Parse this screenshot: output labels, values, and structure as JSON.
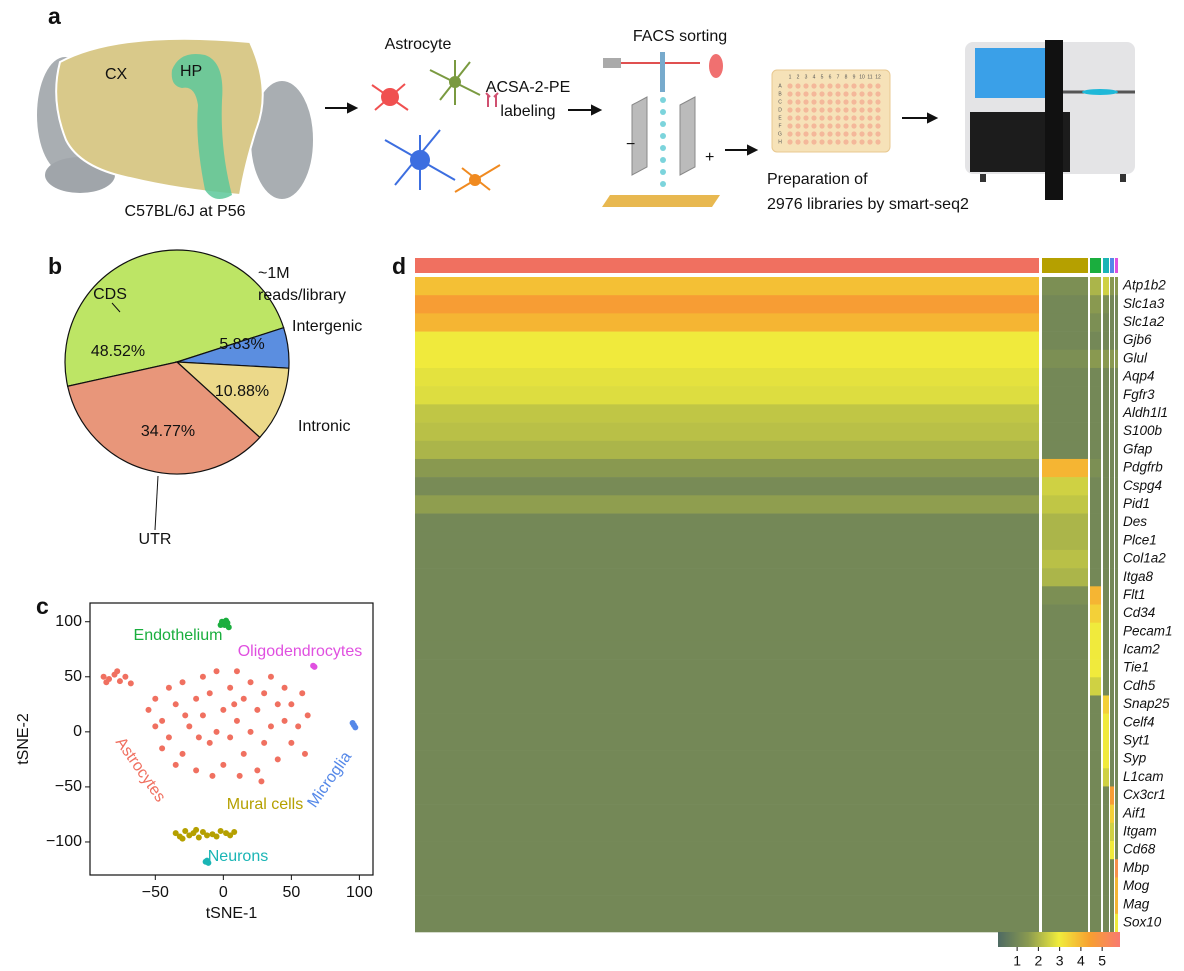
{
  "panel_labels": [
    "a",
    "b",
    "c",
    "d"
  ],
  "diagram": {
    "brain_labels": [
      "CX",
      "HP"
    ],
    "strain": "C57BL/6J at P56",
    "cell_label": "Astrocyte",
    "labeling": [
      "ACSA-2-PE",
      "labeling"
    ],
    "facs": "FACS sorting",
    "minus": "−",
    "plus": "+",
    "plate_cols": [
      "1",
      "2",
      "3",
      "4",
      "5",
      "6",
      "7",
      "8",
      "9",
      "10",
      "11",
      "12"
    ],
    "plate_rows": [
      "A",
      "B",
      "C",
      "D",
      "E",
      "F",
      "G",
      "H"
    ],
    "prep": [
      "Preparation of",
      "2976 libraries by smart-seq2"
    ]
  },
  "chart_data": [
    {
      "type": "pie",
      "annotation": [
        "~1M",
        "reads/library"
      ],
      "categories": [
        "CDS",
        "Intergenic",
        "Intronic",
        "UTR"
      ],
      "values": [
        48.52,
        5.83,
        10.88,
        34.77
      ],
      "value_labels": [
        "48.52%",
        "5.83%",
        "10.88%",
        "34.77%"
      ],
      "colors": [
        "#bde565",
        "#5b8ee0",
        "#ecd98a",
        "#e8967a"
      ]
    },
    {
      "type": "scatter",
      "xlabel": "tSNE-1",
      "ylabel": "tSNE-2",
      "xlim": [
        -98,
        110
      ],
      "ylim": [
        -130,
        117
      ],
      "xticks": [
        {
          "value": -50,
          "label": "−50"
        },
        0,
        50,
        100
      ],
      "yticks": [
        100,
        50,
        0,
        {
          "value": -50,
          "label": "−50"
        },
        {
          "value": -100,
          "label": "−100"
        }
      ],
      "series": [
        {
          "name": "Astrocytes",
          "color": "#f07060",
          "x": [
            -88,
            -84,
            -80,
            -76,
            -72,
            -68,
            -86,
            -78,
            -55,
            -50,
            -45,
            -40,
            -40,
            -35,
            -30,
            -30,
            -25,
            -20,
            -20,
            -15,
            -15,
            -10,
            -10,
            -5,
            -5,
            0,
            0,
            5,
            5,
            10,
            10,
            15,
            15,
            20,
            20,
            25,
            25,
            30,
            30,
            35,
            35,
            40,
            40,
            45,
            45,
            50,
            50,
            55,
            58,
            60,
            -45,
            -35,
            -28,
            -8,
            12,
            28,
            -50,
            62,
            -18,
            8
          ],
          "y": [
            50,
            48,
            52,
            46,
            50,
            44,
            45,
            55,
            20,
            30,
            10,
            40,
            -5,
            25,
            45,
            -20,
            5,
            30,
            -35,
            50,
            15,
            -10,
            35,
            55,
            0,
            20,
            -30,
            40,
            -5,
            10,
            55,
            -20,
            30,
            0,
            45,
            -35,
            20,
            35,
            -10,
            5,
            50,
            -25,
            25,
            10,
            40,
            -10,
            25,
            5,
            35,
            -20,
            -15,
            -30,
            15,
            -40,
            -40,
            -45,
            5,
            15,
            -5,
            25
          ]
        },
        {
          "name": "Mural cells",
          "color": "#b5a000",
          "x": [
            -35,
            -32,
            -28,
            -25,
            -22,
            -18,
            -15,
            -12,
            -8,
            -5,
            -2,
            2,
            5,
            8,
            -30,
            -20
          ],
          "y": [
            -92,
            -95,
            -90,
            -94,
            -92,
            -96,
            -91,
            -94,
            -93,
            -95,
            -90,
            -92,
            -94,
            -91,
            -97,
            -89
          ]
        },
        {
          "name": "Endothelium",
          "color": "#1aae3e",
          "x": [
            -1,
            1,
            3,
            4,
            2,
            -2
          ],
          "y": [
            100,
            97,
            99,
            95,
            101,
            97
          ]
        },
        {
          "name": "Neurons",
          "color": "#1ab5b5",
          "x": [
            -12,
            -11,
            -13
          ],
          "y": [
            -117,
            -119,
            -118
          ]
        },
        {
          "name": "Microglia",
          "color": "#5588e8",
          "x": [
            96,
            97,
            95
          ],
          "y": [
            6,
            4,
            8
          ]
        },
        {
          "name": "Oligodendrocytes",
          "color": "#e050e0",
          "x": [
            66,
            67
          ],
          "y": [
            60,
            59
          ]
        }
      ]
    },
    {
      "type": "heatmap",
      "group_colors": [
        "#f07060",
        "#b5a000",
        "#1aae3e",
        "#1ab5b5",
        "#5588e8",
        "#e050e0"
      ],
      "rows": [
        "Atp1b2",
        "Slc1a3",
        "Slc1a2",
        "Gjb6",
        "Glul",
        "Aqp4",
        "Fgfr3",
        "Aldh1l1",
        "S100b",
        "Gfap",
        "Pdgfrb",
        "Cspg4",
        "Pid1",
        "Des",
        "Plce1",
        "Col1a2",
        "Itga8",
        "Flt1",
        "Cd34",
        "Pecam1",
        "Icam2",
        "Tie1",
        "Cdh5",
        "Snap25",
        "Celf4",
        "Syt1",
        "Syp",
        "L1cam",
        "Cx3cr1",
        "Aif1",
        "Itgam",
        "Cd68",
        "Mbp",
        "Mog",
        "Mag",
        "Sox10"
      ],
      "values": [
        [
          3.8,
          1.2,
          2,
          2.5,
          1.5,
          1.5
        ],
        [
          4.5,
          1,
          1.5,
          1.2,
          1,
          1
        ],
        [
          4,
          1,
          1.2,
          1,
          1,
          1
        ],
        [
          3,
          1,
          1,
          1,
          1,
          1
        ],
        [
          3,
          1.2,
          1.5,
          1.5,
          1.5,
          1.5
        ],
        [
          2.8,
          1,
          1,
          1,
          1,
          1
        ],
        [
          2.7,
          1,
          1,
          1,
          1,
          1
        ],
        [
          2.3,
          1,
          1,
          1,
          1,
          1
        ],
        [
          2.2,
          1,
          1,
          1,
          1,
          1
        ],
        [
          2,
          1,
          1,
          1,
          1,
          1
        ],
        [
          1.5,
          4,
          1.2,
          1,
          1,
          1
        ],
        [
          1.1,
          2.5,
          1,
          1,
          1,
          1
        ],
        [
          1.6,
          2.3,
          1,
          1,
          1,
          1
        ],
        [
          1,
          2,
          1,
          1,
          1,
          1
        ],
        [
          1,
          2,
          1,
          1,
          1,
          1
        ],
        [
          1,
          2.2,
          1,
          1,
          1,
          1
        ],
        [
          1,
          2,
          1,
          1,
          1,
          1
        ],
        [
          1,
          1.2,
          4,
          1,
          1,
          1
        ],
        [
          1,
          1,
          3.5,
          1,
          1,
          1
        ],
        [
          1,
          1,
          3,
          1,
          1,
          1
        ],
        [
          1,
          1,
          3,
          1,
          1,
          1
        ],
        [
          1,
          1,
          3,
          1,
          1,
          1
        ],
        [
          1,
          1,
          2.5,
          1,
          1,
          1
        ],
        [
          1,
          1,
          1,
          3.5,
          1,
          1
        ],
        [
          1,
          1,
          1,
          3,
          1,
          1
        ],
        [
          1,
          1,
          1,
          3,
          1,
          1
        ],
        [
          1,
          1,
          1,
          3,
          1,
          1
        ],
        [
          1,
          1,
          1,
          2.5,
          1,
          1
        ],
        [
          1,
          1,
          1,
          1,
          4.5,
          1
        ],
        [
          1,
          1,
          1,
          1,
          3.5,
          1
        ],
        [
          1,
          1,
          1,
          1,
          2.5,
          1
        ],
        [
          1,
          1,
          1,
          1,
          3,
          1
        ],
        [
          1,
          1,
          1,
          1,
          1,
          5
        ],
        [
          1,
          1,
          1,
          1,
          1,
          4
        ],
        [
          1,
          1,
          1,
          1,
          1,
          4
        ],
        [
          1,
          1,
          1,
          1,
          1,
          3
        ]
      ],
      "clim": [
        0.1,
        5.84
      ],
      "colorbar_ticks": [
        1,
        2,
        3,
        4,
        5
      ],
      "colorscale": [
        "#4e6a63",
        "#8a9a50",
        "#f0ec3c",
        "#f7a030",
        "#f87a70"
      ]
    }
  ]
}
